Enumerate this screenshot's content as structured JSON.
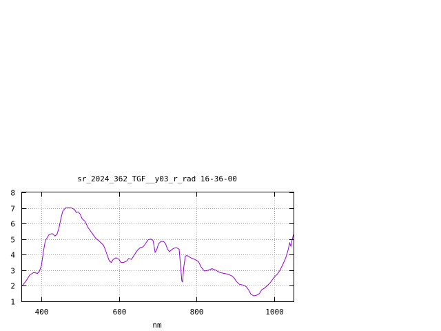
{
  "chart_data": {
    "type": "line",
    "title": "sr_2024_362_TGF__y03_r_rad 16-36-00",
    "xlabel": "nm",
    "ylabel": "",
    "xlim": [
      350,
      1050
    ],
    "ylim": [
      1,
      8
    ],
    "xticks": [
      400,
      600,
      800,
      1000
    ],
    "yticks": [
      1,
      2,
      3,
      4,
      5,
      6,
      7,
      8
    ],
    "xtick_labels": [
      "400",
      "600",
      "800",
      "1000"
    ],
    "ytick_labels": [
      "1",
      "2",
      "3",
      "4",
      "5",
      "6",
      "7",
      "8"
    ],
    "grid": true,
    "legend": "none",
    "series_color": "#9400d3",
    "series": [
      {
        "values": [
          [
            350,
            2.0
          ],
          [
            360,
            2.3
          ],
          [
            370,
            2.7
          ],
          [
            380,
            2.85
          ],
          [
            390,
            2.8
          ],
          [
            395,
            2.95
          ],
          [
            400,
            3.3
          ],
          [
            405,
            4.2
          ],
          [
            410,
            4.9
          ],
          [
            420,
            5.3
          ],
          [
            428,
            5.35
          ],
          [
            435,
            5.2
          ],
          [
            440,
            5.3
          ],
          [
            445,
            5.7
          ],
          [
            450,
            6.3
          ],
          [
            455,
            6.8
          ],
          [
            462,
            7.0
          ],
          [
            470,
            7.02
          ],
          [
            478,
            7.0
          ],
          [
            485,
            6.9
          ],
          [
            490,
            6.7
          ],
          [
            495,
            6.75
          ],
          [
            500,
            6.6
          ],
          [
            505,
            6.3
          ],
          [
            512,
            6.15
          ],
          [
            520,
            5.75
          ],
          [
            530,
            5.4
          ],
          [
            540,
            5.05
          ],
          [
            550,
            4.85
          ],
          [
            560,
            4.6
          ],
          [
            565,
            4.3
          ],
          [
            570,
            3.95
          ],
          [
            575,
            3.6
          ],
          [
            580,
            3.5
          ],
          [
            585,
            3.7
          ],
          [
            592,
            3.8
          ],
          [
            600,
            3.7
          ],
          [
            605,
            3.5
          ],
          [
            612,
            3.5
          ],
          [
            620,
            3.6
          ],
          [
            625,
            3.75
          ],
          [
            632,
            3.7
          ],
          [
            640,
            4.0
          ],
          [
            648,
            4.3
          ],
          [
            655,
            4.45
          ],
          [
            662,
            4.5
          ],
          [
            668,
            4.7
          ],
          [
            675,
            4.95
          ],
          [
            682,
            5.0
          ],
          [
            688,
            4.9
          ],
          [
            690,
            4.6
          ],
          [
            693,
            4.15
          ],
          [
            697,
            4.3
          ],
          [
            702,
            4.7
          ],
          [
            708,
            4.85
          ],
          [
            715,
            4.85
          ],
          [
            720,
            4.7
          ],
          [
            725,
            4.35
          ],
          [
            730,
            4.2
          ],
          [
            740,
            4.4
          ],
          [
            748,
            4.45
          ],
          [
            755,
            4.35
          ],
          [
            758,
            3.5
          ],
          [
            762,
            2.3
          ],
          [
            764,
            2.25
          ],
          [
            767,
            3.2
          ],
          [
            771,
            3.9
          ],
          [
            775,
            3.95
          ],
          [
            785,
            3.8
          ],
          [
            795,
            3.7
          ],
          [
            805,
            3.55
          ],
          [
            812,
            3.2
          ],
          [
            820,
            2.95
          ],
          [
            830,
            3.0
          ],
          [
            840,
            3.1
          ],
          [
            850,
            3.0
          ],
          [
            860,
            2.85
          ],
          [
            870,
            2.8
          ],
          [
            880,
            2.75
          ],
          [
            890,
            2.65
          ],
          [
            897,
            2.5
          ],
          [
            902,
            2.3
          ],
          [
            910,
            2.1
          ],
          [
            920,
            2.05
          ],
          [
            928,
            1.95
          ],
          [
            935,
            1.7
          ],
          [
            940,
            1.45
          ],
          [
            948,
            1.35
          ],
          [
            955,
            1.4
          ],
          [
            962,
            1.5
          ],
          [
            968,
            1.75
          ],
          [
            975,
            1.85
          ],
          [
            982,
            2.0
          ],
          [
            990,
            2.2
          ],
          [
            1000,
            2.55
          ],
          [
            1008,
            2.75
          ],
          [
            1015,
            3.0
          ],
          [
            1022,
            3.35
          ],
          [
            1030,
            3.8
          ],
          [
            1036,
            4.3
          ],
          [
            1040,
            4.75
          ],
          [
            1043,
            4.55
          ],
          [
            1046,
            4.9
          ],
          [
            1050,
            5.3
          ]
        ]
      }
    ]
  }
}
